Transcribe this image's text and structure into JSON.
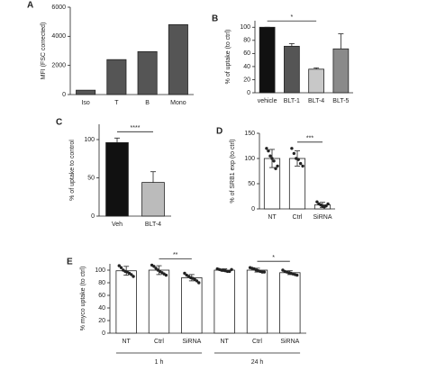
{
  "chart_data": [
    {
      "type": "bar",
      "panel": "A",
      "ylabel": "MFI (FSC corrected)",
      "categories": [
        "Iso",
        "T",
        "B",
        "Mono"
      ],
      "values": [
        300,
        2400,
        2950,
        4800
      ],
      "color": "#555555",
      "ylim": [
        0,
        6000
      ],
      "yticks": [
        0,
        2000,
        4000,
        6000
      ]
    },
    {
      "type": "bar",
      "panel": "B",
      "ylabel": "% of uptake (to ctrl)",
      "categories": [
        "vehicle",
        "BLT-1",
        "BLT-4",
        "BLT-5"
      ],
      "values": [
        100,
        71,
        36,
        67
      ],
      "errors": [
        0,
        4,
        2,
        23
      ],
      "colors": [
        "#111111",
        "#555555",
        "#c8c8c8",
        "#8a8a8a"
      ],
      "ylim": [
        0,
        110
      ],
      "yticks": [
        0,
        20,
        40,
        60,
        80,
        100
      ],
      "annotations": [
        {
          "text": "*",
          "from": 0,
          "to": 2
        }
      ]
    },
    {
      "type": "bar",
      "panel": "C",
      "ylabel": "% of uptake to control",
      "categories": [
        "Veh",
        "BLT-4"
      ],
      "values": [
        96,
        44
      ],
      "errors": [
        6,
        14
      ],
      "colors": [
        "#111111",
        "#bbbbbb"
      ],
      "ylim": [
        0,
        120
      ],
      "yticks": [
        0,
        50,
        100
      ],
      "annotations": [
        {
          "text": "****",
          "from": 0,
          "to": 1
        }
      ]
    },
    {
      "type": "bar",
      "panel": "D",
      "ylabel": "% of SRB1 exp (to ctrl)",
      "categories": [
        "NT",
        "Ctrl",
        "SiRNA"
      ],
      "values": [
        100,
        100,
        8
      ],
      "errors": [
        18,
        15,
        5
      ],
      "color": "#ffffff",
      "points": [
        [
          120,
          115,
          105,
          100,
          95,
          80,
          85
        ],
        [
          120,
          110,
          100,
          98,
          90,
          85
        ],
        [
          14,
          10,
          8,
          5,
          4,
          6,
          10
        ]
      ],
      "ylim": [
        0,
        150
      ],
      "yticks": [
        0,
        50,
        100,
        150
      ],
      "annotations": [
        {
          "text": "***",
          "from": 1,
          "to": 2
        }
      ]
    },
    {
      "type": "bar",
      "panel": "E",
      "ylabel": "% myco uptake (to ctrl)",
      "categories": [
        "NT",
        "Ctrl",
        "SiRNA",
        "NT",
        "Ctrl",
        "SiRNA"
      ],
      "groups": [
        "1 h",
        "24 h"
      ],
      "values": [
        99,
        100,
        88,
        100,
        100,
        96
      ],
      "errors": [
        7,
        7,
        5,
        2,
        3,
        3
      ],
      "color": "#ffffff",
      "points": [
        [
          107,
          104,
          100,
          98,
          97,
          95,
          93,
          90
        ],
        [
          108,
          106,
          103,
          100,
          98,
          96,
          94,
          92
        ],
        [
          95,
          92,
          90,
          88,
          87,
          85,
          83,
          80
        ],
        [
          102,
          101,
          100,
          100,
          99,
          98,
          98,
          101
        ],
        [
          104,
          103,
          102,
          100,
          99,
          98,
          97,
          97
        ],
        [
          100,
          98,
          97,
          96,
          95,
          94,
          93,
          92
        ]
      ],
      "ylim": [
        0,
        110
      ],
      "yticks": [
        0,
        20,
        40,
        60,
        80,
        100
      ],
      "annotations": [
        {
          "text": "**",
          "from": 1,
          "to": 2
        },
        {
          "text": "*",
          "from": 4,
          "to": 5
        }
      ]
    }
  ]
}
